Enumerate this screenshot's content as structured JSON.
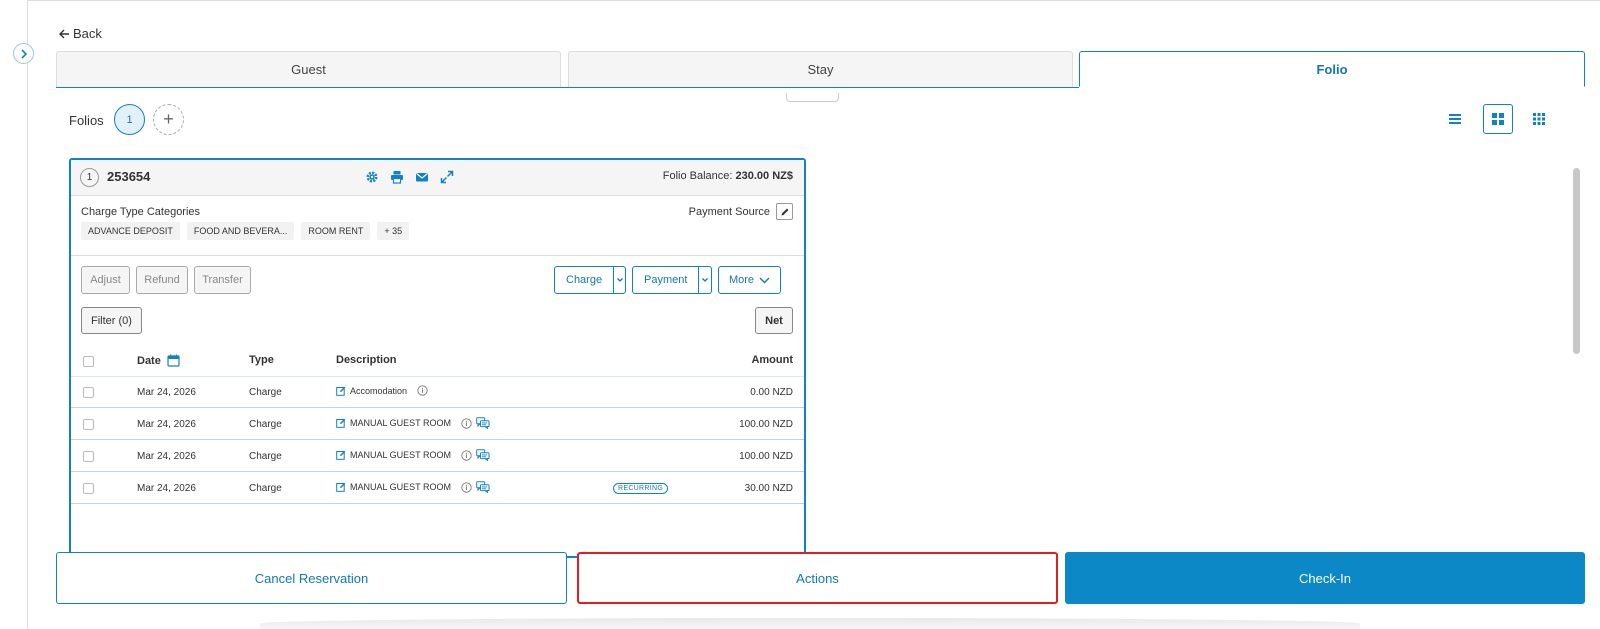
{
  "nav": {
    "back_label": "Back"
  },
  "tabs": [
    {
      "label": "Guest"
    },
    {
      "label": "Stay"
    },
    {
      "label": "Folio"
    }
  ],
  "folios": {
    "label": "Folios",
    "current_number": "1",
    "add_symbol": "+"
  },
  "folio_card": {
    "index": "1",
    "id": "253654",
    "balance_label": "Folio Balance:",
    "balance_value": "230.00 NZ$",
    "charge_type_label": "Charge Type Categories",
    "chips": [
      "ADVANCE DEPOSIT",
      "FOOD AND BEVERA...",
      "ROOM RENT",
      "+ 35"
    ],
    "payment_source_label": "Payment Source",
    "buttons": {
      "adjust": "Adjust",
      "refund": "Refund",
      "transfer": "Transfer",
      "charge": "Charge",
      "payment": "Payment",
      "more": "More",
      "filter": "Filter (0)",
      "net": "Net"
    },
    "columns": {
      "date": "Date",
      "type": "Type",
      "description": "Description",
      "amount": "Amount"
    },
    "rows": [
      {
        "date": "Mar 24, 2026",
        "type": "Charge",
        "description": "Accomodation",
        "amount": "0.00 NZD"
      },
      {
        "date": "Mar 24, 2026",
        "type": "Charge",
        "description": "MANUAL GUEST ROOM",
        "amount": "100.00 NZD"
      },
      {
        "date": "Mar 24, 2026",
        "type": "Charge",
        "description": "MANUAL GUEST ROOM",
        "amount": "100.00 NZD"
      },
      {
        "date": "Mar 24, 2026",
        "type": "Charge",
        "description": "MANUAL GUEST ROOM",
        "amount": "30.00 NZD",
        "badge": "RECURRING"
      }
    ]
  },
  "bottom_actions": {
    "cancel": "Cancel Reservation",
    "actions": "Actions",
    "checkin": "Check-In"
  },
  "colors": {
    "accent": "#1183c4",
    "primary_button": "#0d88c6",
    "highlight": "#e02020"
  }
}
